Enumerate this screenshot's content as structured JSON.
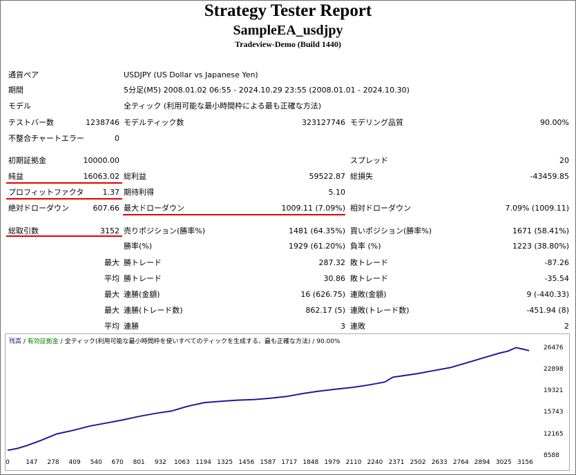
{
  "title": "Strategy Tester Report",
  "subtitle": "SampleEA_usdjpy",
  "build": "Tradeview-Demo (Build 1440)",
  "info": [
    {
      "label": "通貨ペア",
      "value": "USDJPY (US Dollar vs Japanese Yen)"
    },
    {
      "label": "期間",
      "value": "5分足(M5) 2008.01.02 06:55 - 2024.10.29 23:55 (2008.01.01 - 2024.10.30)"
    },
    {
      "label": "モデル",
      "value": "全ティック (利用可能な最小時間枠による最も正確な方法)"
    }
  ],
  "row_bars": {
    "l1": "テストバー数",
    "v1": "1238746",
    "l2": "モデルティック数",
    "v2": "323127746",
    "l3": "モデリング品質",
    "v3": "90.00%"
  },
  "row_errors": {
    "l1": "不整合チャートエラー",
    "v1": "0"
  },
  "row_deposit": {
    "l1": "初期証拠金",
    "v1": "10000.00",
    "l3": "スプレッド",
    "v3": "20"
  },
  "row_profit": {
    "l1": "純益",
    "v1": "16063.02",
    "l2": "総利益",
    "v2": "59522.87",
    "l3": "総損失",
    "v3": "-43459.85"
  },
  "row_pf": {
    "l1": "プロフィットファクタ",
    "v1": "1.37",
    "l2": "期待利得",
    "v2": "5.10"
  },
  "row_dd": {
    "l1": "絶対ドローダウン",
    "v1": "607.66",
    "l2": "最大ドローダウン",
    "v2": "1009.11 (7.09%)",
    "l3": "相対ドローダウン",
    "v3": "7.09% (1009.11)"
  },
  "row_trades": {
    "l1": "総取引数",
    "v1": "3152",
    "l2": "売りポジション(勝率%)",
    "v2": "1481 (64.35%)",
    "l3": "買いポジション(勝率%)",
    "v3": "1671 (58.41%)"
  },
  "row_winrate": {
    "l2": "勝率(%)",
    "v2": "1929 (61.20%)",
    "l3": "負率 (%)",
    "v3": "1223 (38.80%)"
  },
  "row_max_trade": {
    "p": "最大",
    "l2": "勝トレード",
    "v2": "287.32",
    "l3": "敗トレード",
    "v3": "-87.26"
  },
  "row_avg_trade": {
    "p": "平均",
    "l2": "勝トレード",
    "v2": "30.86",
    "l3": "敗トレード",
    "v3": "-35.54"
  },
  "row_max_cons": {
    "p": "最大",
    "l2": "連勝(金額)",
    "v2": "16 (626.75)",
    "l3": "連敗(金額)",
    "v3": "9 (-440.33)"
  },
  "row_max_cons2": {
    "p": "最大",
    "l2": "連勝(トレード数)",
    "v2": "862.17 (5)",
    "l3": "連敗(トレード数)",
    "v3": "-451.94 (8)"
  },
  "row_avg_cons": {
    "p": "平均",
    "l2": "連勝",
    "v2": "3",
    "l3": "連敗",
    "v3": "2"
  },
  "chart_legend": {
    "balance": "残高",
    "sep1": " / ",
    "equity": "有効証拠金",
    "sep2": " / ",
    "model": "全ティック(利用可能な最小時間枠を使いすべてのティックを生成する、最も正確な方法)",
    "sep3": " / ",
    "quality": "90.00%"
  },
  "colors": {
    "balance": "#1a1a9a",
    "equity": "#008000",
    "underline": "#e00000"
  },
  "chart_data": {
    "type": "line",
    "xlabel": "",
    "ylabel": "",
    "x_ticks": [
      0,
      147,
      278,
      409,
      540,
      670,
      801,
      932,
      1063,
      1194,
      1325,
      1456,
      1587,
      1717,
      1848,
      1979,
      2110,
      2240,
      2371,
      2502,
      2633,
      2764,
      2894,
      3025,
      3156
    ],
    "y_ticks": [
      8588,
      12165,
      15743,
      19321,
      22898,
      26476
    ],
    "xlim": [
      0,
      3230
    ],
    "ylim": [
      8588,
      27000
    ],
    "series": [
      {
        "values_x": [
          0,
          60,
          120,
          200,
          300,
          400,
          500,
          600,
          700,
          800,
          900,
          1000,
          1100,
          1200,
          1300,
          1400,
          1500,
          1600,
          1700,
          1800,
          1900,
          2000,
          2100,
          2200,
          2300,
          2350,
          2400,
          2500,
          2600,
          2700,
          2800,
          2900,
          3000,
          3050,
          3100,
          3150,
          3180
        ],
        "values_y": [
          9600,
          9900,
          10400,
          11200,
          12300,
          12900,
          13600,
          14100,
          14600,
          15200,
          15700,
          16100,
          16900,
          17500,
          17700,
          17900,
          18000,
          18200,
          18500,
          19000,
          19400,
          19700,
          20000,
          20400,
          20900,
          21700,
          21900,
          22300,
          22800,
          23300,
          24100,
          24900,
          25700,
          26000,
          26600,
          26300,
          26100
        ]
      }
    ]
  }
}
